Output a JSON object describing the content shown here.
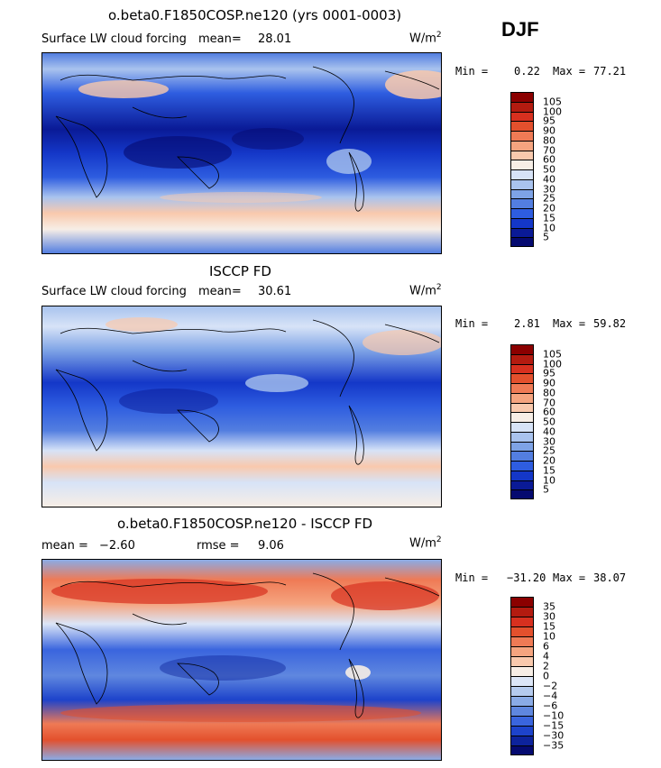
{
  "season": "DJF",
  "panels": [
    {
      "id": "model",
      "title": "o.beta0.F1850COSP.ne120 (yrs 0001-0003)",
      "variable": "Surface LW cloud forcing",
      "stat_label": "mean=",
      "stat_value": "28.01",
      "units_base": "W/m",
      "units_exp": "2",
      "min_label": "Min =",
      "min_value": "0.22",
      "max_label": "Max =",
      "max_value": "77.21",
      "colorbar_labels": [
        "105",
        "100",
        "95",
        "90",
        "80",
        "70",
        "60",
        "50",
        "40",
        "30",
        "25",
        "20",
        "15",
        "10",
        "5"
      ]
    },
    {
      "id": "obs",
      "title": "ISCCP FD",
      "variable": "Surface LW cloud forcing",
      "stat_label": "mean=",
      "stat_value": "30.61",
      "units_base": "W/m",
      "units_exp": "2",
      "min_label": "Min =",
      "min_value": "2.81",
      "max_label": "Max =",
      "max_value": "59.82",
      "colorbar_labels": [
        "105",
        "100",
        "95",
        "90",
        "80",
        "70",
        "60",
        "50",
        "40",
        "30",
        "25",
        "20",
        "15",
        "10",
        "5"
      ]
    },
    {
      "id": "diff",
      "title": "o.beta0.F1850COSP.ne120 - ISCCP FD",
      "mean_label": "mean =",
      "mean_value": "−2.60",
      "rmse_label": "rmse =",
      "rmse_value": "9.06",
      "units_base": "W/m",
      "units_exp": "2",
      "min_label": "Min =",
      "min_value": "−31.20",
      "max_label": "Max =",
      "max_value": "38.07",
      "colorbar_labels": [
        "35",
        "30",
        "15",
        "10",
        "6",
        "4",
        "2",
        "0",
        "−2",
        "−4",
        "−6",
        "−10",
        "−15",
        "−30",
        "−35"
      ]
    }
  ],
  "colors": {
    "abs_scale": [
      "#8b0000",
      "#b31b10",
      "#d7301f",
      "#e3502d",
      "#ef7a55",
      "#f5a47f",
      "#f9c9ad",
      "#f7eee6",
      "#d7e3f7",
      "#a9c3ee",
      "#7ea3e6",
      "#537ee0",
      "#2e5de0",
      "#1437c8",
      "#0a1a96",
      "#050a70"
    ],
    "diff_scale": [
      "#8b0000",
      "#b31b10",
      "#d7301f",
      "#e3502d",
      "#ef7a55",
      "#f5a47f",
      "#f9c9ad",
      "#f7eee6",
      "#dce6f7",
      "#b5cbee",
      "#8aabe6",
      "#5f87df",
      "#3a65de",
      "#1d43cb",
      "#0d239c",
      "#050a70"
    ]
  }
}
